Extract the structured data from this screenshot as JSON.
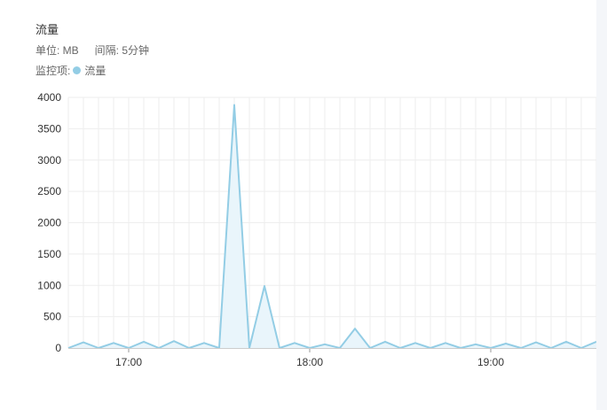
{
  "header": {
    "title": "流量",
    "unit_label": "单位: MB",
    "interval_label": "间隔: 5分钟",
    "legend_prefix": "监控项:",
    "legend_series": "流量"
  },
  "colors": {
    "line": "#93cde5",
    "fill": "#e9f5fb",
    "grid": "#eeeeee"
  },
  "chart_data": {
    "type": "area",
    "title": "流量",
    "xlabel": "",
    "ylabel": "",
    "ylim": [
      0,
      4000
    ],
    "y_ticks": [
      0,
      500,
      1000,
      1500,
      2000,
      2500,
      3000,
      3500,
      4000
    ],
    "x_ticks": [
      "17:00",
      "18:00",
      "19:00"
    ],
    "x": [
      "16:40",
      "16:45",
      "16:50",
      "16:55",
      "17:00",
      "17:05",
      "17:10",
      "17:15",
      "17:20",
      "17:25",
      "17:30",
      "17:35",
      "17:40",
      "17:45",
      "17:50",
      "17:55",
      "18:00",
      "18:05",
      "18:10",
      "18:15",
      "18:20",
      "18:25",
      "18:30",
      "18:35",
      "18:40",
      "18:45",
      "18:50",
      "18:55",
      "19:00",
      "19:05",
      "19:10",
      "19:15",
      "19:20",
      "19:25",
      "19:30",
      "19:35"
    ],
    "series": [
      {
        "name": "流量",
        "values": [
          0,
          90,
          0,
          80,
          0,
          100,
          0,
          110,
          0,
          80,
          0,
          3880,
          0,
          990,
          0,
          80,
          0,
          60,
          0,
          310,
          0,
          100,
          0,
          80,
          0,
          80,
          0,
          60,
          0,
          70,
          0,
          90,
          0,
          100,
          0,
          100
        ]
      }
    ],
    "grid": true
  }
}
